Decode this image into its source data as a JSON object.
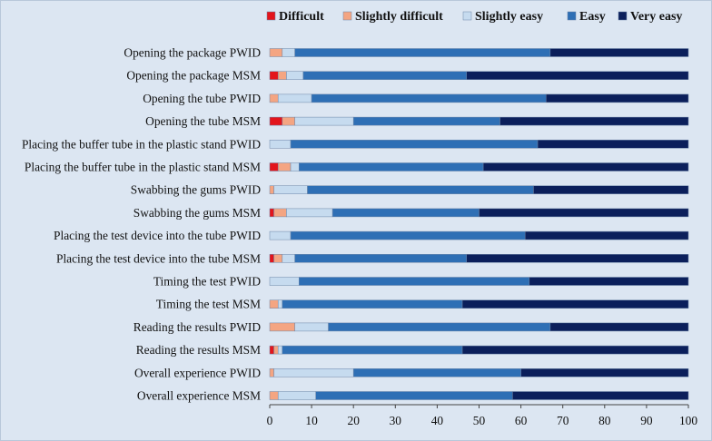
{
  "chart_data": {
    "type": "bar",
    "orientation": "horizontal",
    "stacked": true,
    "title": "",
    "xlabel": "",
    "ylabel": "",
    "xlim": [
      0,
      100
    ],
    "x_ticks": [
      0,
      10,
      20,
      30,
      40,
      50,
      60,
      70,
      80,
      90,
      100
    ],
    "grid": false,
    "legend_position": "top-right",
    "categories": [
      "Opening the package PWID",
      "Opening the package MSM",
      "Opening the tube PWID",
      "Opening the tube MSM",
      "Placing the buffer tube in the plastic stand PWID",
      "Placing the buffer tube in the plastic stand MSM",
      "Swabbing the gums PWID",
      "Swabbing the gums MSM",
      "Placing the test device into the tube PWID",
      "Placing the test device into the tube MSM",
      "Timing the test PWID",
      "Timing the test MSM",
      "Reading the results PWID",
      "Reading the results MSM",
      "Overall experience PWID",
      "Overall experience MSM"
    ],
    "series": [
      {
        "name": "Difficult",
        "color": "#e3141b",
        "values": [
          0,
          2,
          0,
          3,
          0,
          2,
          0,
          1,
          0,
          1,
          0,
          0,
          0,
          1,
          0,
          0
        ]
      },
      {
        "name": "Slightly difficult",
        "color": "#f4a582",
        "values": [
          3,
          2,
          2,
          3,
          0,
          3,
          1,
          3,
          0,
          2,
          0,
          2,
          6,
          1,
          1,
          2
        ]
      },
      {
        "name": "Slightly easy",
        "color": "#c6dbef",
        "values": [
          3,
          4,
          8,
          14,
          5,
          2,
          8,
          11,
          5,
          3,
          7,
          1,
          8,
          1,
          19,
          9
        ]
      },
      {
        "name": "Easy",
        "color": "#2e6fb5",
        "values": [
          61,
          39,
          56,
          35,
          59,
          44,
          54,
          35,
          56,
          41,
          55,
          43,
          53,
          43,
          40,
          47
        ]
      },
      {
        "name": "Very easy",
        "color": "#0b1f5b",
        "values": [
          33,
          53,
          34,
          45,
          36,
          49,
          37,
          50,
          39,
          53,
          38,
          54,
          33,
          54,
          40,
          42
        ]
      }
    ]
  }
}
